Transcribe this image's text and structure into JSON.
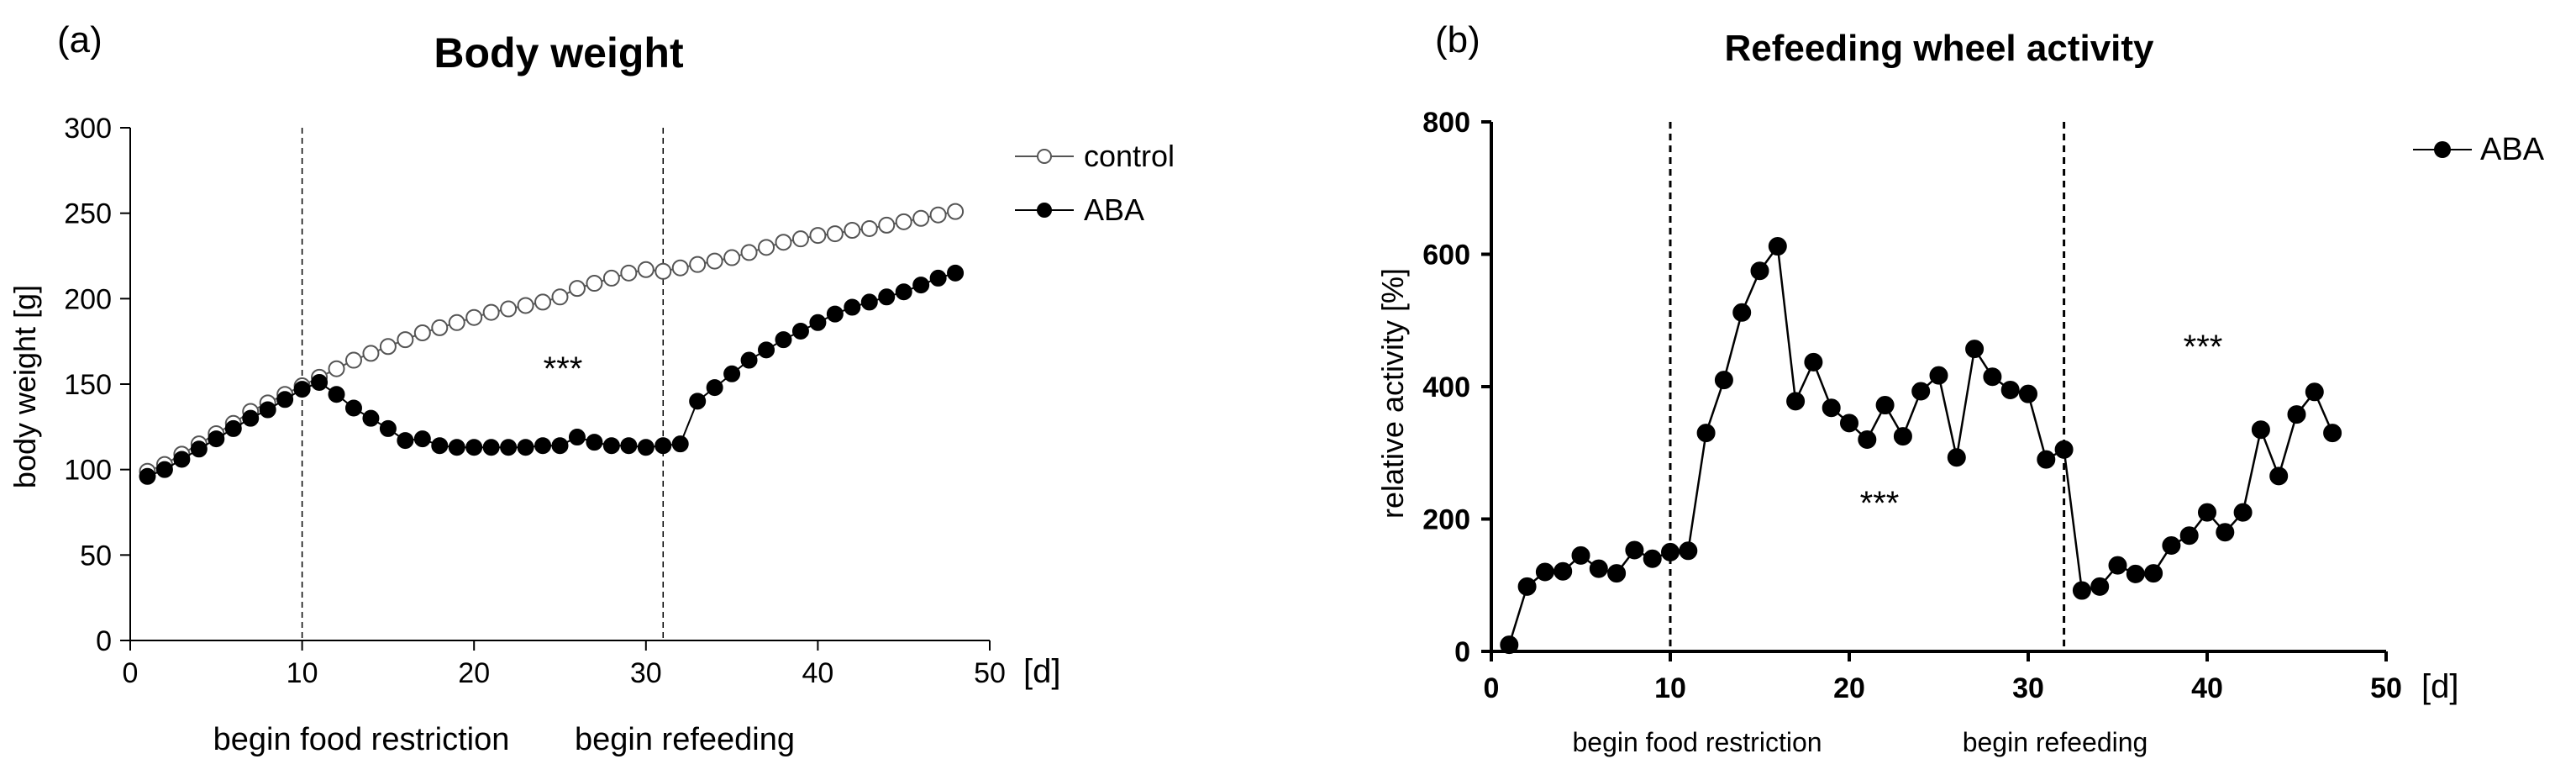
{
  "chart_data": [
    {
      "panel_label": "(a)",
      "type": "line",
      "title": "Body weight",
      "xlabel": "",
      "x_unit": "[d]",
      "ylabel": "body weight [g]",
      "xlim": [
        0,
        50
      ],
      "ylim": [
        0,
        300
      ],
      "xticks": [
        0,
        10,
        20,
        30,
        40,
        50
      ],
      "yticks": [
        0,
        50,
        100,
        150,
        200,
        250,
        300
      ],
      "grid": false,
      "legend_position": "top-right",
      "vlines": [
        {
          "x": 10,
          "label": "begin food restriction"
        },
        {
          "x": 31,
          "label": "begin refeeding"
        }
      ],
      "annotations": [
        {
          "text": "***",
          "x": 26,
          "y": 158
        }
      ],
      "series": [
        {
          "name": "control",
          "marker": "open-circle",
          "x": [
            1,
            2,
            3,
            4,
            5,
            6,
            7,
            8,
            9,
            10,
            11,
            12,
            13,
            14,
            15,
            16,
            17,
            18,
            19,
            20,
            21,
            22,
            23,
            24,
            25,
            26,
            27,
            28,
            29,
            30,
            31,
            32,
            33,
            34,
            35,
            36,
            37,
            38,
            39,
            40,
            41,
            42,
            43,
            44,
            45,
            46,
            47,
            48
          ],
          "values": [
            99,
            103,
            109,
            115,
            121,
            127,
            134,
            139,
            144,
            149,
            154,
            159,
            164,
            168,
            172,
            176,
            180,
            183,
            186,
            189,
            192,
            194,
            196,
            198,
            201,
            206,
            209,
            212,
            215,
            217,
            216,
            218,
            220,
            222,
            224,
            227,
            230,
            233,
            235,
            237,
            238,
            240,
            241,
            243,
            245,
            247,
            249,
            251
          ]
        },
        {
          "name": "ABA",
          "marker": "filled-circle",
          "x": [
            1,
            2,
            3,
            4,
            5,
            6,
            7,
            8,
            9,
            10,
            11,
            12,
            13,
            14,
            15,
            16,
            17,
            18,
            19,
            20,
            21,
            22,
            23,
            24,
            25,
            26,
            27,
            28,
            29,
            30,
            31,
            32,
            33,
            34,
            35,
            36,
            37,
            38,
            39,
            40,
            41,
            42,
            43,
            44,
            45,
            46,
            47,
            48
          ],
          "values": [
            96,
            100,
            106,
            112,
            118,
            124,
            130,
            135,
            141,
            147,
            151,
            144,
            136,
            130,
            124,
            117,
            118,
            114,
            113,
            113,
            113,
            113,
            113,
            114,
            114,
            119,
            116,
            114,
            114,
            113,
            114,
            115,
            140,
            148,
            156,
            164,
            170,
            176,
            181,
            186,
            191,
            195,
            198,
            201,
            204,
            208,
            212,
            215
          ]
        }
      ]
    },
    {
      "panel_label": "(b)",
      "type": "line",
      "title": "Refeeding wheel activity",
      "xlabel": "",
      "x_unit": "[d]",
      "ylabel": "relative activity [%]",
      "xlim": [
        0,
        50
      ],
      "ylim": [
        0,
        800
      ],
      "xticks": [
        0,
        10,
        20,
        30,
        40,
        50
      ],
      "yticks": [
        0,
        200,
        400,
        600,
        800
      ],
      "grid": false,
      "legend_position": "top-right",
      "vlines": [
        {
          "x": 10,
          "label": "begin food restriction"
        },
        {
          "x": 32,
          "label": "begin refeeding"
        }
      ],
      "annotations": [
        {
          "text": "***",
          "x": 21,
          "y": 235
        },
        {
          "text": "***",
          "x": 40,
          "y": 470
        }
      ],
      "series": [
        {
          "name": "ABA",
          "marker": "filled-circle",
          "x": [
            1,
            2,
            3,
            4,
            5,
            6,
            7,
            8,
            9,
            10,
            11,
            12,
            13,
            14,
            15,
            16,
            17,
            18,
            19,
            20,
            21,
            22,
            23,
            24,
            25,
            26,
            27,
            28,
            29,
            30,
            31,
            32,
            33,
            34,
            35,
            36,
            37,
            38,
            39,
            40,
            41,
            42,
            43,
            44,
            45,
            46,
            47
          ],
          "values": [
            10,
            98,
            120,
            121,
            145,
            125,
            118,
            153,
            140,
            150,
            152,
            330,
            410,
            512,
            575,
            612,
            378,
            437,
            368,
            345,
            320,
            372,
            325,
            393,
            417,
            293,
            457,
            415,
            395,
            389,
            290,
            305,
            92,
            98,
            130,
            117,
            118,
            160,
            175,
            210,
            180,
            210,
            335,
            265,
            358,
            392,
            330
          ]
        }
      ]
    }
  ]
}
